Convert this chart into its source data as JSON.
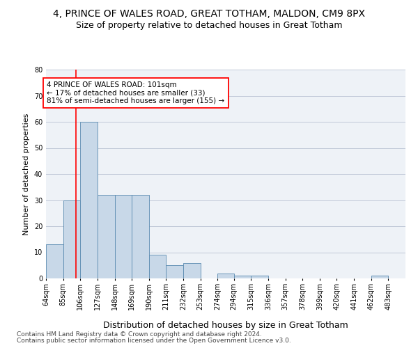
{
  "title": "4, PRINCE OF WALES ROAD, GREAT TOTHAM, MALDON, CM9 8PX",
  "subtitle": "Size of property relative to detached houses in Great Totham",
  "xlabel": "Distribution of detached houses by size in Great Totham",
  "ylabel": "Number of detached properties",
  "footnote1": "Contains HM Land Registry data © Crown copyright and database right 2024.",
  "footnote2": "Contains public sector information licensed under the Open Government Licence v3.0.",
  "annotation_line1": "4 PRINCE OF WALES ROAD: 101sqm",
  "annotation_line2": "← 17% of detached houses are smaller (33)",
  "annotation_line3": "81% of semi-detached houses are larger (155) →",
  "bar_color": "#c8d8e8",
  "bar_edge_color": "#5a8ab0",
  "grid_color": "#c0c8d8",
  "bg_color": "#eef2f7",
  "red_line_x": 101,
  "categories": [
    "64sqm",
    "85sqm",
    "106sqm",
    "127sqm",
    "148sqm",
    "169sqm",
    "190sqm",
    "211sqm",
    "232sqm",
    "253sqm",
    "274sqm",
    "294sqm",
    "315sqm",
    "336sqm",
    "357sqm",
    "378sqm",
    "399sqm",
    "420sqm",
    "441sqm",
    "462sqm",
    "483sqm"
  ],
  "bin_edges": [
    64,
    85,
    106,
    127,
    148,
    169,
    190,
    211,
    232,
    253,
    274,
    294,
    315,
    336,
    357,
    378,
    399,
    420,
    441,
    462,
    483,
    504
  ],
  "values": [
    13,
    30,
    60,
    32,
    32,
    32,
    9,
    5,
    6,
    0,
    2,
    1,
    1,
    0,
    0,
    0,
    0,
    0,
    0,
    1,
    0
  ],
  "ylim": [
    0,
    80
  ],
  "yticks": [
    0,
    10,
    20,
    30,
    40,
    50,
    60,
    70,
    80
  ],
  "title_fontsize": 10,
  "subtitle_fontsize": 9,
  "xlabel_fontsize": 9,
  "ylabel_fontsize": 8,
  "tick_fontsize": 7,
  "annotation_fontsize": 7.5,
  "footnote_fontsize": 6.5
}
